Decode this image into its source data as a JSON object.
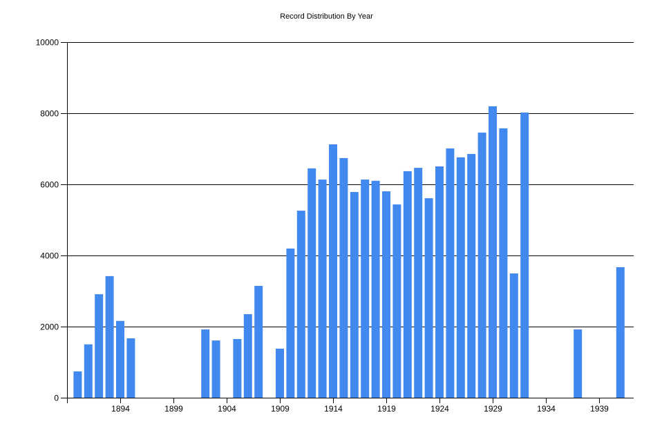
{
  "chart_data": {
    "type": "bar",
    "title": "Record Distribution By Year",
    "xlabel": "",
    "ylabel": "",
    "ylim": [
      0,
      10000
    ],
    "yticks": [
      0,
      2000,
      4000,
      6000,
      8000,
      10000
    ],
    "xticks": [
      1894,
      1899,
      1904,
      1909,
      1914,
      1919,
      1924,
      1929,
      1934,
      1939
    ],
    "grid": true,
    "legend": "none",
    "bar_color": "#4189ee",
    "categories": [
      1890,
      1891,
      1892,
      1893,
      1894,
      1895,
      1902,
      1903,
      1905,
      1906,
      1907,
      1909,
      1910,
      1911,
      1912,
      1913,
      1914,
      1915,
      1916,
      1917,
      1918,
      1919,
      1920,
      1921,
      1922,
      1923,
      1924,
      1925,
      1926,
      1927,
      1928,
      1929,
      1930,
      1931,
      1932,
      1937,
      1941
    ],
    "values": [
      740,
      1500,
      2910,
      3420,
      2160,
      1670,
      1920,
      1610,
      1650,
      2350,
      3145,
      1380,
      4195,
      5260,
      6450,
      6135,
      7125,
      6740,
      5785,
      6135,
      6100,
      5805,
      5435,
      6370,
      6465,
      5610,
      6505,
      7010,
      6760,
      6855,
      7455,
      8195,
      7575,
      3495,
      8020,
      1920,
      3670
    ]
  }
}
